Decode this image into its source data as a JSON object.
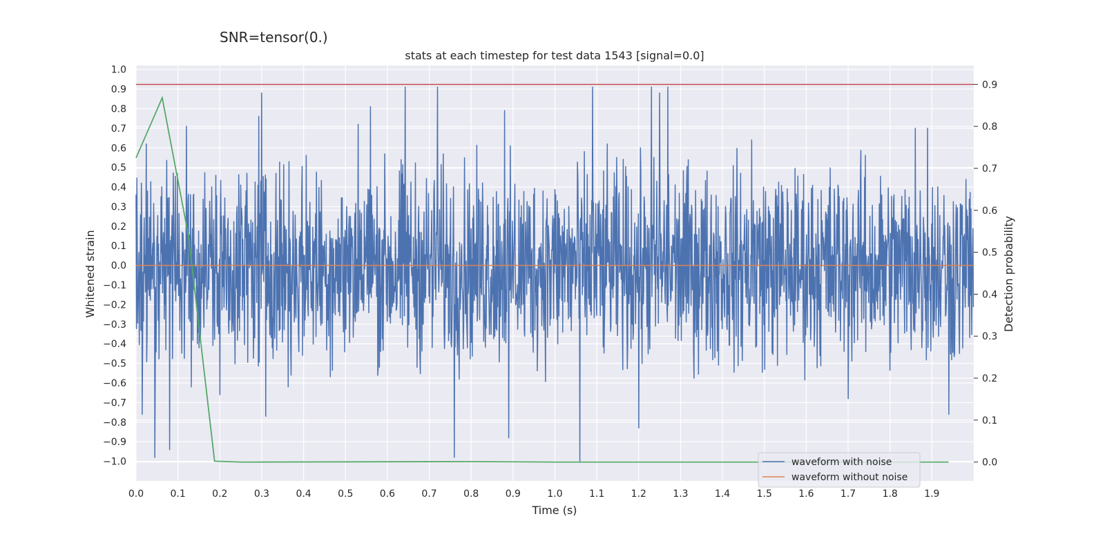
{
  "figure": {
    "suptitle": "SNR=tensor(0.)",
    "title": "stats at each timestep for test data 1543 [signal=0.0]"
  },
  "colors": {
    "background": "#eaeaf2",
    "grid": "#ffffff",
    "noisy": "#4c72b0",
    "clean": "#dd8452",
    "prob": "#55a868",
    "threshold": "#c44e52"
  },
  "chart_data": {
    "type": "line",
    "title": "stats at each timestep for test data 1543 [signal=0.0]",
    "xlabel": "Time (s)",
    "ylabel": "Whitened strain",
    "y2label": "Detection probability",
    "xlim": [
      0.0,
      2.0
    ],
    "ylim": [
      -1.1,
      1.02
    ],
    "y2lim": [
      -0.045,
      0.945
    ],
    "xticks": [
      "0.0",
      "0.1",
      "0.2",
      "0.3",
      "0.4",
      "0.5",
      "0.6",
      "0.7",
      "0.8",
      "0.9",
      "1.0",
      "1.1",
      "1.2",
      "1.3",
      "1.4",
      "1.5",
      "1.6",
      "1.7",
      "1.8",
      "1.9"
    ],
    "yticks": [
      "1.0",
      "0.9",
      "0.8",
      "0.7",
      "0.6",
      "0.5",
      "0.4",
      "0.3",
      "0.2",
      "0.1",
      "0.0",
      "−0.1",
      "−0.2",
      "−0.3",
      "−0.4",
      "−0.5",
      "−0.6",
      "−0.7",
      "−0.8",
      "−0.9",
      "−1.0"
    ],
    "y2ticks": [
      "0.9",
      "0.8",
      "0.7",
      "0.6",
      "0.5",
      "0.4",
      "0.3",
      "0.2",
      "0.1",
      "0.0"
    ],
    "grid": true,
    "legend_position": "bottom-right",
    "legend": [
      "waveform with noise",
      "waveform without noise"
    ],
    "noise_points": 2048,
    "noise_peaks": [
      {
        "x": 0.015,
        "y": -0.76
      },
      {
        "x": 0.045,
        "y": -0.98
      },
      {
        "x": 0.06,
        "y": 0.35
      },
      {
        "x": 0.08,
        "y": -0.94
      },
      {
        "x": 0.12,
        "y": 0.71
      },
      {
        "x": 0.2,
        "y": -0.66
      },
      {
        "x": 0.293,
        "y": 0.76
      },
      {
        "x": 0.3,
        "y": 0.88
      },
      {
        "x": 0.31,
        "y": -0.77
      },
      {
        "x": 0.37,
        "y": -0.56
      },
      {
        "x": 0.53,
        "y": 0.72
      },
      {
        "x": 0.56,
        "y": 0.81
      },
      {
        "x": 0.643,
        "y": 0.91
      },
      {
        "x": 0.72,
        "y": 0.91
      },
      {
        "x": 0.76,
        "y": -0.98
      },
      {
        "x": 0.88,
        "y": 0.79
      },
      {
        "x": 0.89,
        "y": -0.88
      },
      {
        "x": 1.06,
        "y": -1.0
      },
      {
        "x": 1.09,
        "y": 0.91
      },
      {
        "x": 1.2,
        "y": -0.83
      },
      {
        "x": 1.23,
        "y": 0.91
      },
      {
        "x": 1.25,
        "y": 0.88
      },
      {
        "x": 1.27,
        "y": 0.91
      },
      {
        "x": 1.47,
        "y": 0.64
      },
      {
        "x": 1.7,
        "y": -0.68
      },
      {
        "x": 1.86,
        "y": 0.7
      },
      {
        "x": 1.89,
        "y": 0.7
      },
      {
        "x": 1.94,
        "y": -0.76
      }
    ],
    "series": [
      {
        "name": "waveform with noise",
        "kind": "noise",
        "amplitude": 0.42
      },
      {
        "name": "waveform without noise",
        "kind": "constant",
        "value": 0.0
      },
      {
        "kind": "probability",
        "x": [
          0.0,
          0.0625,
          0.125,
          0.1875,
          0.25,
          0.8,
          1.0,
          1.94
        ],
        "y": [
          0.725,
          0.868,
          0.54,
          0.002,
          0.0,
          0.001,
          0.0,
          0.0
        ]
      },
      {
        "kind": "threshold",
        "value": 0.9
      }
    ]
  }
}
